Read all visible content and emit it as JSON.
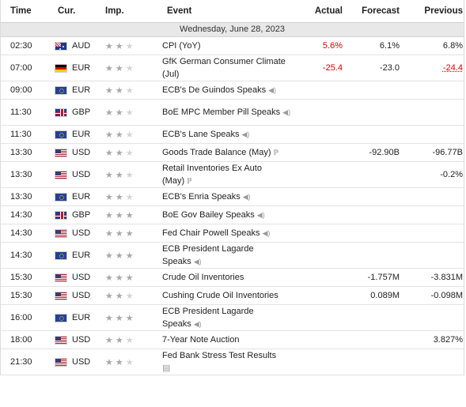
{
  "headers": {
    "time": "Time",
    "currency": "Cur.",
    "importance": "Imp.",
    "event": "Event",
    "actual": "Actual",
    "forecast": "Forecast",
    "previous": "Previous"
  },
  "date_label": "Wednesday, June 28, 2023",
  "colors": {
    "negative": "#e00000",
    "star_active": "#a8a8a8",
    "star_inactive": "#d4d4d4"
  },
  "rows": [
    {
      "time": "02:30",
      "currency": "AUD",
      "flag": "au",
      "stars": 2,
      "event": "CPI (YoY)",
      "icon": "",
      "actual": "5.6%",
      "actual_color": "red",
      "forecast": "6.1%",
      "previous": "6.8%",
      "previous_style": ""
    },
    {
      "time": "07:00",
      "currency": "EUR",
      "flag": "de",
      "stars": 2,
      "event": "GfK German Consumer Climate (Jul)",
      "icon": "",
      "actual": "-25.4",
      "actual_color": "red",
      "forecast": "-23.0",
      "previous": "-24.4",
      "previous_style": "red"
    },
    {
      "time": "09:00",
      "currency": "EUR",
      "flag": "eu",
      "stars": 2,
      "event": "ECB's De Guindos Speaks",
      "icon": "speaker",
      "actual": "",
      "actual_color": "",
      "forecast": "",
      "previous": "",
      "previous_style": ""
    },
    {
      "time": "11:30",
      "currency": "GBP",
      "flag": "gb",
      "stars": 2,
      "event": "BoE MPC Member Pill Speaks",
      "icon": "speaker",
      "actual": "",
      "actual_color": "",
      "forecast": "",
      "previous": "",
      "previous_style": ""
    },
    {
      "time": "11:30",
      "currency": "EUR",
      "flag": "eu",
      "stars": 2,
      "event": "ECB's Lane Speaks",
      "icon": "speaker",
      "actual": "",
      "actual_color": "",
      "forecast": "",
      "previous": "",
      "previous_style": ""
    },
    {
      "time": "13:30",
      "currency": "USD",
      "flag": "us",
      "stars": 2,
      "event": "Goods Trade Balance (May)",
      "icon": "preliminary",
      "actual": "",
      "actual_color": "",
      "forecast": "-92.90B",
      "previous": "-96.77B",
      "previous_style": ""
    },
    {
      "time": "13:30",
      "currency": "USD",
      "flag": "us",
      "stars": 2,
      "event": "Retail Inventories Ex Auto (May)",
      "icon": "preliminary",
      "actual": "",
      "actual_color": "",
      "forecast": "",
      "previous": "-0.2%",
      "previous_style": ""
    },
    {
      "time": "13:30",
      "currency": "EUR",
      "flag": "eu",
      "stars": 2,
      "event": "ECB's Enria Speaks",
      "icon": "speaker",
      "actual": "",
      "actual_color": "",
      "forecast": "",
      "previous": "",
      "previous_style": ""
    },
    {
      "time": "14:30",
      "currency": "GBP",
      "flag": "gb",
      "stars": 3,
      "event": "BoE Gov Bailey Speaks",
      "icon": "speaker",
      "actual": "",
      "actual_color": "",
      "forecast": "",
      "previous": "",
      "previous_style": ""
    },
    {
      "time": "14:30",
      "currency": "USD",
      "flag": "us",
      "stars": 3,
      "event": "Fed Chair Powell Speaks",
      "icon": "speaker",
      "actual": "",
      "actual_color": "",
      "forecast": "",
      "previous": "",
      "previous_style": ""
    },
    {
      "time": "14:30",
      "currency": "EUR",
      "flag": "eu",
      "stars": 3,
      "event": "ECB President Lagarde Speaks",
      "icon": "speaker",
      "actual": "",
      "actual_color": "",
      "forecast": "",
      "previous": "",
      "previous_style": ""
    },
    {
      "time": "15:30",
      "currency": "USD",
      "flag": "us",
      "stars": 3,
      "event": "Crude Oil Inventories",
      "icon": "",
      "actual": "",
      "actual_color": "",
      "forecast": "-1.757M",
      "previous": "-3.831M",
      "previous_style": ""
    },
    {
      "time": "15:30",
      "currency": "USD",
      "flag": "us",
      "stars": 2,
      "event": "Cushing Crude Oil Inventories",
      "icon": "",
      "actual": "",
      "actual_color": "",
      "forecast": "0.089M",
      "previous": "-0.098M",
      "previous_style": ""
    },
    {
      "time": "16:00",
      "currency": "EUR",
      "flag": "eu",
      "stars": 3,
      "event": "ECB President Lagarde Speaks",
      "icon": "speaker",
      "actual": "",
      "actual_color": "",
      "forecast": "",
      "previous": "",
      "previous_style": ""
    },
    {
      "time": "18:00",
      "currency": "USD",
      "flag": "us",
      "stars": 2,
      "event": "7-Year Note Auction",
      "icon": "",
      "actual": "",
      "actual_color": "",
      "forecast": "",
      "previous": "3.827%",
      "previous_style": ""
    },
    {
      "time": "21:30",
      "currency": "USD",
      "flag": "us",
      "stars": 2,
      "event": "Fed Bank Stress Test Results",
      "icon": "report",
      "actual": "",
      "actual_color": "",
      "forecast": "",
      "previous": "",
      "previous_style": ""
    }
  ]
}
